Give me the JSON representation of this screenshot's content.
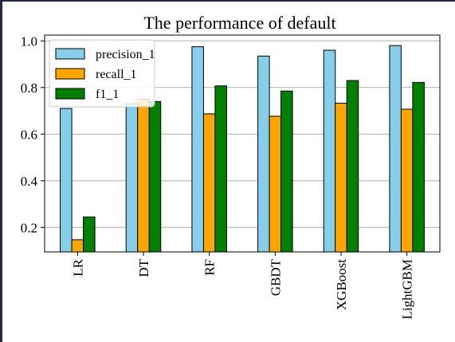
{
  "chart_data": {
    "type": "bar",
    "title": "The performance of default",
    "xlabel": "",
    "ylabel": "",
    "categories": [
      "LR",
      "DT",
      "RF",
      "GBDT",
      "XGBoost",
      "LightGBM"
    ],
    "series": [
      {
        "name": "precision_1",
        "color": "#87CEEB",
        "values": [
          0.71,
          0.73,
          0.975,
          0.935,
          0.96,
          0.98
        ]
      },
      {
        "name": "recall_1",
        "color": "#FFA500",
        "values": [
          0.147,
          0.75,
          0.687,
          0.677,
          0.733,
          0.707
        ]
      },
      {
        "name": "f1_1",
        "color": "#008000",
        "values": [
          0.245,
          0.74,
          0.807,
          0.785,
          0.83,
          0.822
        ]
      }
    ],
    "ylim": [
      0.095,
      1.025
    ],
    "yticks": [
      "0.2",
      "0.4",
      "0.6",
      "0.8",
      "1.0"
    ],
    "ytick_values": [
      0.2,
      0.4,
      0.6,
      0.8,
      1.0
    ],
    "grid": "horizontal",
    "legend_position": "upper-left"
  }
}
